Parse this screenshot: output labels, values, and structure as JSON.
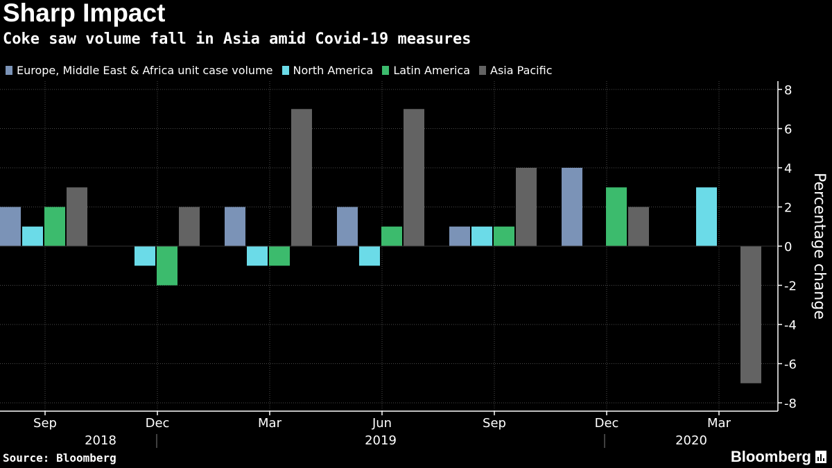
{
  "title": "Sharp Impact",
  "subtitle": "Coke saw volume fall in Asia amid Covid-19 measures",
  "source": "Source: Bloomberg",
  "brand": "Bloomberg",
  "brand_icon": "bloomberg-chart-icon",
  "colors": {
    "background": "#000000",
    "grid": "#4d4d4d",
    "text": "#ffffff"
  },
  "chart_data": {
    "type": "bar",
    "categories": [
      "Sep 2018",
      "Dec 2018",
      "Mar 2019",
      "Jun 2019",
      "Sep 2019",
      "Dec 2019",
      "Mar 2020"
    ],
    "tick_labels": [
      "Sep",
      "Dec",
      "Mar",
      "Jun",
      "Sep",
      "Dec",
      "Mar"
    ],
    "year_labels": [
      {
        "label": "2018",
        "start": 0,
        "end": 0
      },
      {
        "label": "2019",
        "start": 2,
        "end": 5
      },
      {
        "label": "2020",
        "start": 6,
        "end": 6
      }
    ],
    "series": [
      {
        "name": "Europe, Middle East & Africa unit case volume",
        "color": "#7b93b7",
        "values": [
          2,
          0,
          2,
          2,
          1,
          4,
          0
        ]
      },
      {
        "name": "North America",
        "color": "#6bdbe8",
        "values": [
          1,
          -1,
          -1,
          -1,
          1,
          0,
          3
        ]
      },
      {
        "name": "Latin America",
        "color": "#3cbb6d",
        "values": [
          2,
          -2,
          -1,
          1,
          1,
          3,
          0
        ]
      },
      {
        "name": "Asia Pacific",
        "color": "#636363",
        "values": [
          3,
          2,
          7,
          7,
          4,
          2,
          -7
        ]
      }
    ],
    "ylabel": "Percentage change",
    "ylim": [
      -8,
      8
    ],
    "yticks": [
      8,
      6,
      4,
      2,
      0,
      -2,
      -4,
      -6,
      -8
    ],
    "y_axis_position": "right",
    "grid": true,
    "legend_position": "top-left"
  }
}
